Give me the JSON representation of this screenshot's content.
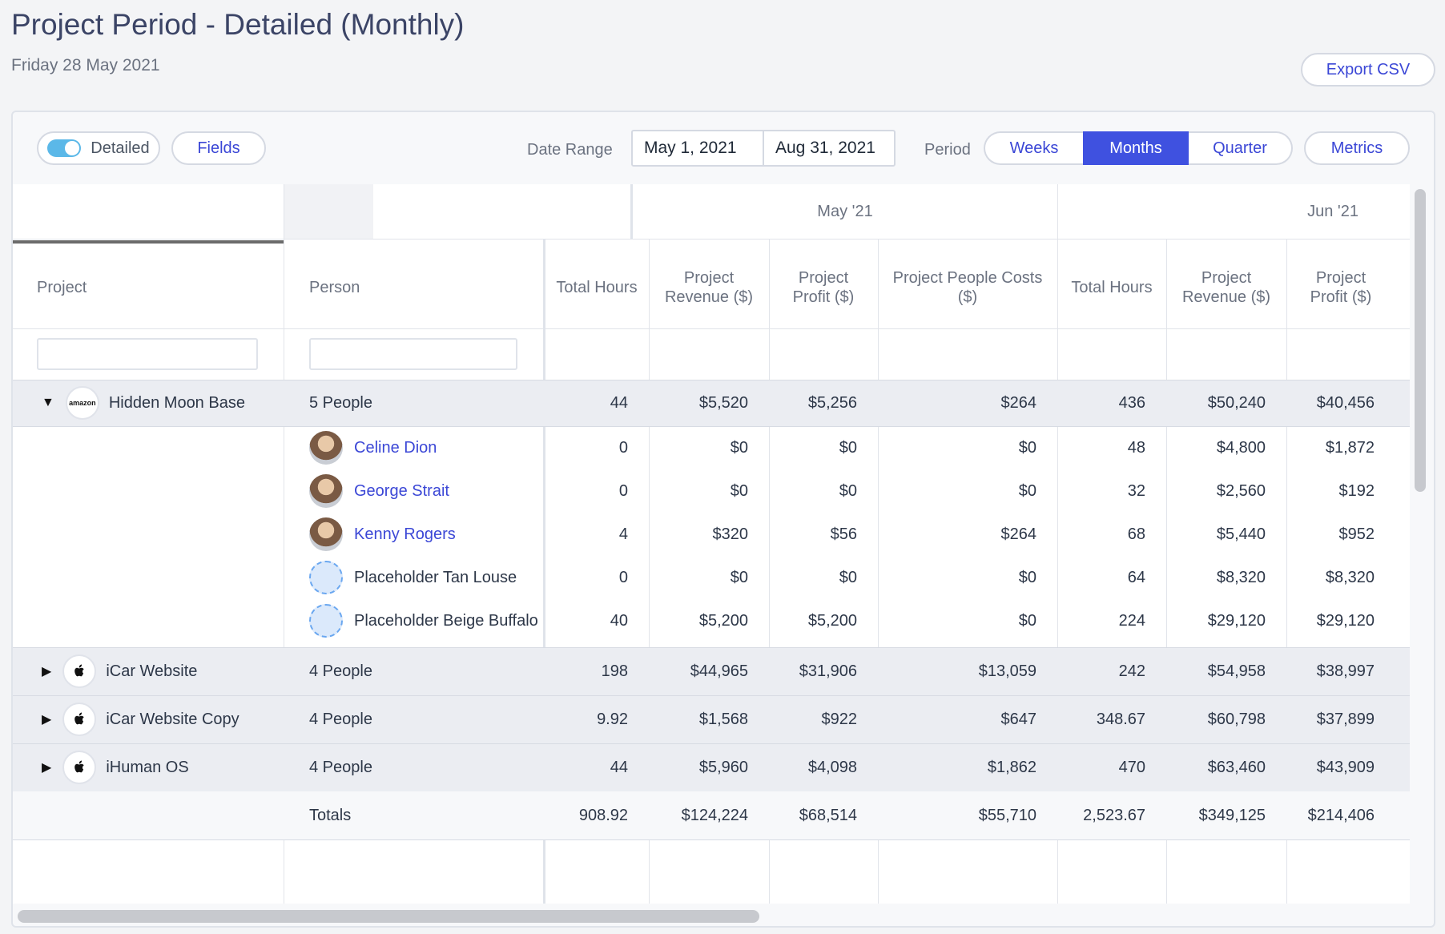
{
  "page": {
    "title": "Project Period - Detailed (Monthly)",
    "date": "Friday 28 May 2021",
    "export_label": "Export CSV"
  },
  "toolbar": {
    "detailed_label": "Detailed",
    "detailed_on": true,
    "fields_label": "Fields",
    "date_range_label": "Date Range",
    "date_start": "May 1, 2021",
    "date_end": "Aug 31, 2021",
    "period_label": "Period",
    "period_options": [
      "Weeks",
      "Months",
      "Quarter"
    ],
    "period_selected": "Months",
    "metrics_label": "Metrics"
  },
  "table": {
    "months": [
      "May '21",
      "Jun '21"
    ],
    "col_project": "Project",
    "col_person": "Person",
    "metric_headers": [
      "Total Hours",
      "Project Revenue ($)",
      "Project Profit ($)",
      "Project People Costs ($)",
      "Total Hours",
      "Project Revenue ($)",
      "Project Profit ($)"
    ],
    "groups": [
      {
        "project": "Hidden Moon Base",
        "logo": "amazon-logo",
        "logo_text": "amazon",
        "expanded": true,
        "people": "5 People",
        "values": [
          "44",
          "$5,520",
          "$5,256",
          "$264",
          "436",
          "$50,240",
          "$40,456"
        ],
        "members": [
          {
            "name": "Celine Dion",
            "link": true,
            "avatar": "avatar-photo",
            "values": [
              "0",
              "$0",
              "$0",
              "$0",
              "48",
              "$4,800",
              "$1,872"
            ]
          },
          {
            "name": "George Strait",
            "link": true,
            "avatar": "avatar-photo",
            "values": [
              "0",
              "$0",
              "$0",
              "$0",
              "32",
              "$2,560",
              "$192"
            ]
          },
          {
            "name": "Kenny Rogers",
            "link": true,
            "avatar": "avatar-photo",
            "values": [
              "4",
              "$320",
              "$56",
              "$264",
              "68",
              "$5,440",
              "$952"
            ]
          },
          {
            "name": "Placeholder Tan Louse",
            "link": false,
            "avatar": "placeholder",
            "values": [
              "0",
              "$0",
              "$0",
              "$0",
              "64",
              "$8,320",
              "$8,320"
            ]
          },
          {
            "name": "Placeholder Beige Buffalo",
            "link": false,
            "avatar": "placeholder",
            "values": [
              "40",
              "$5,200",
              "$5,200",
              "$0",
              "224",
              "$29,120",
              "$29,120"
            ]
          }
        ]
      },
      {
        "project": "iCar Website",
        "logo": "apple-logo",
        "expanded": false,
        "people": "4 People",
        "values": [
          "198",
          "$44,965",
          "$31,906",
          "$13,059",
          "242",
          "$54,958",
          "$38,997"
        ]
      },
      {
        "project": "iCar Website Copy",
        "logo": "apple-logo",
        "expanded": false,
        "people": "4 People",
        "values": [
          "9.92",
          "$1,568",
          "$922",
          "$647",
          "348.67",
          "$60,798",
          "$37,899"
        ]
      },
      {
        "project": "iHuman OS",
        "logo": "apple-logo",
        "expanded": false,
        "people": "4 People",
        "values": [
          "44",
          "$5,960",
          "$4,098",
          "$1,862",
          "470",
          "$63,460",
          "$43,909"
        ]
      }
    ],
    "totals_label": "Totals",
    "totals": [
      "908.92",
      "$124,224",
      "$68,514",
      "$55,710",
      "2,523.67",
      "$349,125",
      "$214,406"
    ]
  },
  "colors": {
    "accent": "#3f51e0",
    "link": "#3b47d6",
    "toggle": "#5bb8e8",
    "group_row": "#ebedf2"
  }
}
